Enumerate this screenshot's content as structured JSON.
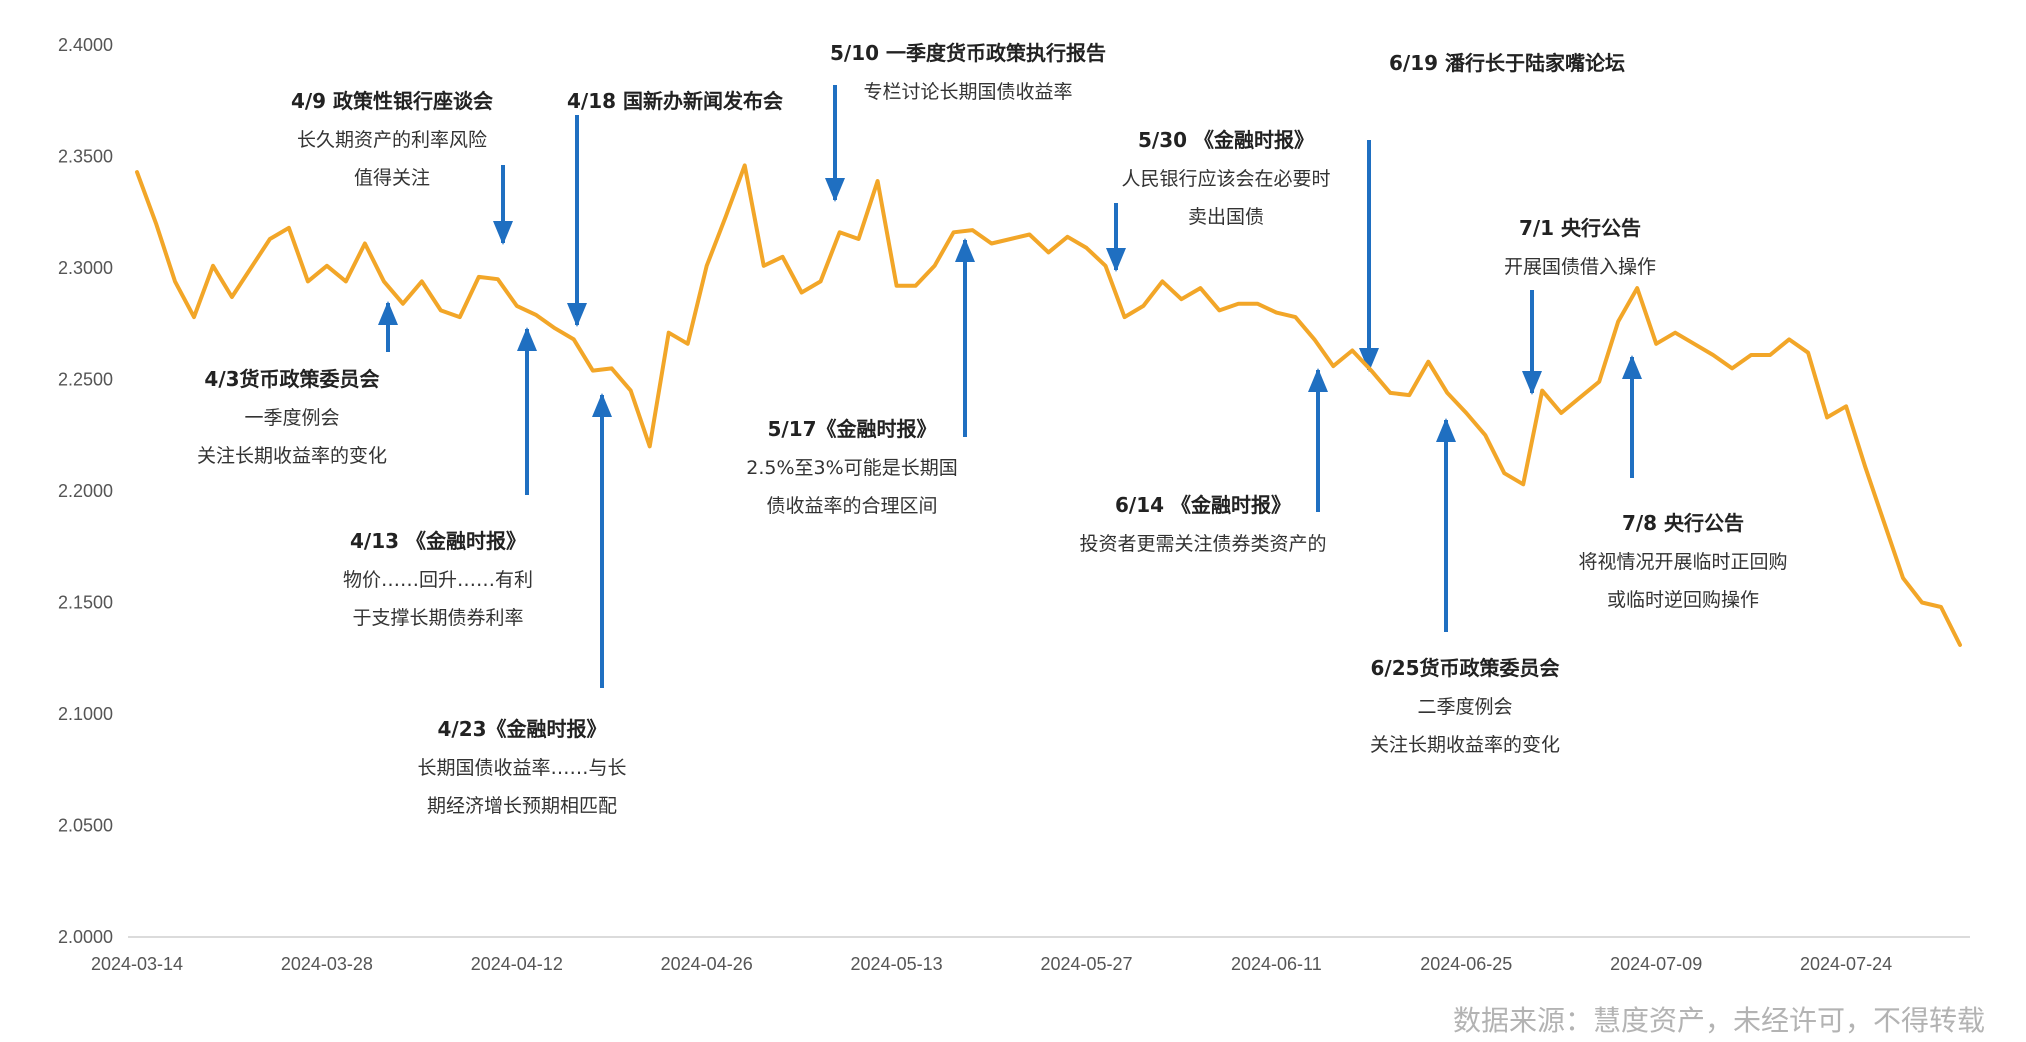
{
  "chart_data": {
    "type": "line",
    "title": "",
    "xlabel": "",
    "ylabel": "",
    "ylim": [
      2.0,
      2.4
    ],
    "ytick_labels": [
      "2.0000",
      "2.0500",
      "2.1000",
      "2.1500",
      "2.2000",
      "2.2500",
      "2.3000",
      "2.3500",
      "2.4000"
    ],
    "xtick_labels": [
      "2024-03-14",
      "2024-03-28",
      "2024-04-12",
      "2024-04-26",
      "2024-05-13",
      "2024-05-27",
      "2024-06-11",
      "2024-06-25",
      "2024-07-09",
      "2024-07-24"
    ],
    "grid": false,
    "legend": "none",
    "line_color": "#F2A628",
    "arrow_color": "#1F6FC1",
    "series": [
      {
        "values": [
          2.343,
          2.32,
          2.294,
          2.278,
          2.301,
          2.287,
          2.3,
          2.313,
          2.318,
          2.294,
          2.301,
          2.294,
          2.311,
          2.294,
          2.284,
          2.294,
          2.281,
          2.278,
          2.296,
          2.295,
          2.283,
          2.279,
          2.273,
          2.268,
          2.254,
          2.255,
          2.245,
          2.22,
          2.271,
          2.266,
          2.301,
          2.323,
          2.346,
          2.301,
          2.305,
          2.289,
          2.294,
          2.316,
          2.313,
          2.339,
          2.292,
          2.292,
          2.301,
          2.316,
          2.317,
          2.311,
          2.313,
          2.315,
          2.307,
          2.314,
          2.309,
          2.301,
          2.278,
          2.283,
          2.294,
          2.286,
          2.291,
          2.281,
          2.284,
          2.284,
          2.28,
          2.278,
          2.268,
          2.256,
          2.263,
          2.254,
          2.244,
          2.243,
          2.258,
          2.244,
          2.235,
          2.225,
          2.208,
          2.203,
          2.245,
          2.235,
          2.242,
          2.249,
          2.276,
          2.291,
          2.266,
          2.271,
          2.266,
          2.261,
          2.255,
          2.261,
          2.261,
          2.268,
          2.262,
          2.233,
          2.238,
          2.211,
          2.186,
          2.161,
          2.15,
          2.148,
          2.131
        ]
      }
    ],
    "annotations": [
      {
        "title": "4/3货币政策委员会",
        "lines": [
          "一季度例会",
          "关注长期收益率的变化"
        ]
      },
      {
        "title": "4/9 政策性银行座谈会",
        "lines": [
          "长久期资产的利率风险",
          "值得关注"
        ]
      },
      {
        "title": "4/13 《金融时报》",
        "lines": [
          "物价……回升……有利",
          "于支撑长期债券利率"
        ]
      },
      {
        "title": "4/18 国新办新闻发布会",
        "lines": []
      },
      {
        "title": "4/23《金融时报》",
        "lines": [
          "长期国债收益率……与长",
          "期经济增长预期相匹配"
        ]
      },
      {
        "title": "5/10 一季度货币政策执行报告",
        "lines": [
          "专栏讨论长期国债收益率"
        ]
      },
      {
        "title": "5/17《金融时报》",
        "lines": [
          "2.5%至3%可能是长期国",
          "债收益率的合理区间"
        ]
      },
      {
        "title": "5/30 《金融时报》",
        "lines": [
          "人民银行应该会在必要时",
          "卖出国债"
        ]
      },
      {
        "title": "6/14 《金融时报》",
        "lines": [
          "投资者更需关注债券类资产的"
        ]
      },
      {
        "title": "6/19 潘行长于陆家嘴论坛",
        "lines": []
      },
      {
        "title": "6/25货币政策委员会",
        "lines": [
          "二季度例会",
          "关注长期收益率的变化"
        ]
      },
      {
        "title": "7/1 央行公告",
        "lines": [
          "开展国债借入操作"
        ]
      },
      {
        "title": "7/8 央行公告",
        "lines": [
          "将视情况开展临时正回购",
          "或临时逆回购操作"
        ]
      }
    ]
  },
  "source_text": "数据来源：慧度资产，未经许可，不得转载"
}
